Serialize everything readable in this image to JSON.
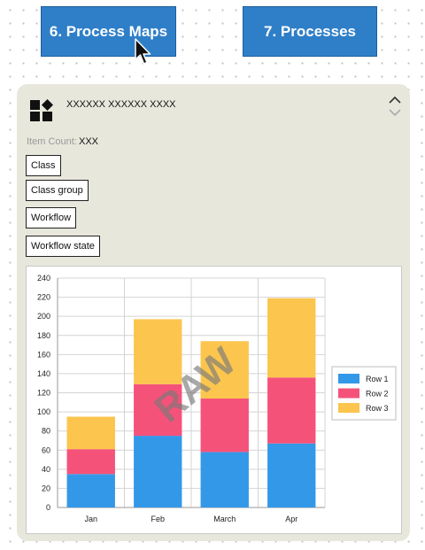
{
  "nav": {
    "process_maps": "6. Process Maps",
    "processes": "7. Processes"
  },
  "panel": {
    "title": "XXXXXX XXXXXX XXXX",
    "item_count_label": "Item Count:",
    "item_count_value": "XXX",
    "tags": [
      "Class",
      "Class group",
      "Workflow",
      "Workflow state"
    ],
    "logo_icon": "shapes-logo-icon",
    "collapse_icon": "collapse-chevrons-icon"
  },
  "watermark": "RAW",
  "chart_data": {
    "type": "bar",
    "stacked": true,
    "categories": [
      "Jan",
      "Feb",
      "March",
      "Apr"
    ],
    "series": [
      {
        "name": "Row 1",
        "color": "#3498e8",
        "values": [
          35,
          75,
          58,
          67
        ]
      },
      {
        "name": "Row 2",
        "color": "#f5527a",
        "values": [
          26,
          54,
          56,
          69
        ]
      },
      {
        "name": "Row 3",
        "color": "#fbc54e",
        "values": [
          34,
          68,
          60,
          83
        ]
      }
    ],
    "ylim": [
      0,
      240
    ],
    "ytick_step": 20,
    "grid": true,
    "legend_position": "right",
    "title": "",
    "xlabel": "",
    "ylabel": ""
  }
}
